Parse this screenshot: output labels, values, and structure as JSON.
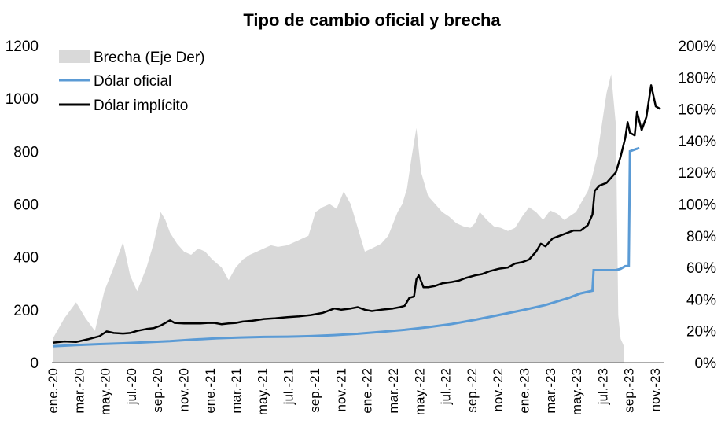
{
  "chart_data": {
    "type": "line",
    "title": "Tipo de cambio oficial y brecha",
    "x_tick_labels": [
      "ene.-20",
      "mar.-20",
      "may.-20",
      "jul.-20",
      "sep.-20",
      "nov.-20",
      "ene.-21",
      "mar.-21",
      "may.-21",
      "jul.-21",
      "sep.-21",
      "nov.-21",
      "ene.-22",
      "mar.-22",
      "may.-22",
      "jul.-22",
      "sep.-22",
      "nov.-22",
      "ene.-23",
      "mar.-23",
      "may.-23",
      "jul.-23",
      "sep.-23",
      "nov.-23"
    ],
    "y_left": {
      "min": 0,
      "max": 1200,
      "ticks": [
        "0",
        "200",
        "400",
        "600",
        "800",
        "1000",
        "1200"
      ]
    },
    "y_right": {
      "min": 0,
      "max": 200,
      "ticks": [
        "0%",
        "20%",
        "40%",
        "60%",
        "80%",
        "100%",
        "120%",
        "140%",
        "160%",
        "180%",
        "200%"
      ]
    },
    "legend": {
      "position": "top-left",
      "entries": [
        "Brecha (Eje Der)",
        "Dólar oficial",
        "Dólar implícito"
      ]
    },
    "colors": {
      "brecha": "#d9d9d9",
      "oficial": "#5b9bd5",
      "implicito": "#000000"
    },
    "series": [
      {
        "name": "Brecha (Eje Der)",
        "axis": "right",
        "kind": "area",
        "points": [
          [
            0,
            15
          ],
          [
            0.5,
            28
          ],
          [
            1,
            38
          ],
          [
            1.4,
            28
          ],
          [
            1.8,
            20
          ],
          [
            2.2,
            45
          ],
          [
            2.6,
            60
          ],
          [
            3,
            76
          ],
          [
            3.3,
            55
          ],
          [
            3.6,
            45
          ],
          [
            4,
            60
          ],
          [
            4.3,
            75
          ],
          [
            4.6,
            95
          ],
          [
            4.8,
            90
          ],
          [
            5,
            82
          ],
          [
            5.3,
            75
          ],
          [
            5.6,
            70
          ],
          [
            5.9,
            68
          ],
          [
            6.2,
            72
          ],
          [
            6.5,
            70
          ],
          [
            6.8,
            65
          ],
          [
            7.2,
            60
          ],
          [
            7.5,
            52
          ],
          [
            7.8,
            60
          ],
          [
            8.1,
            65
          ],
          [
            8.4,
            68
          ],
          [
            8.7,
            70
          ],
          [
            9,
            72
          ],
          [
            9.3,
            74
          ],
          [
            9.6,
            73
          ],
          [
            10,
            74
          ],
          [
            10.3,
            76
          ],
          [
            10.6,
            78
          ],
          [
            10.9,
            80
          ],
          [
            11.2,
            95
          ],
          [
            11.5,
            98
          ],
          [
            11.8,
            100
          ],
          [
            12.1,
            97
          ],
          [
            12.4,
            108
          ],
          [
            12.7,
            100
          ],
          [
            13,
            85
          ],
          [
            13.3,
            70
          ],
          [
            13.6,
            72
          ],
          [
            14,
            75
          ],
          [
            14.3,
            80
          ],
          [
            14.7,
            95
          ],
          [
            14.9,
            100
          ],
          [
            15.1,
            110
          ],
          [
            15.3,
            130
          ],
          [
            15.5,
            148
          ],
          [
            15.7,
            120
          ],
          [
            16,
            105
          ],
          [
            16.3,
            100
          ],
          [
            16.6,
            95
          ],
          [
            16.9,
            92
          ],
          [
            17.2,
            88
          ],
          [
            17.5,
            86
          ],
          [
            17.8,
            85
          ],
          [
            18,
            88
          ],
          [
            18.2,
            95
          ],
          [
            18.5,
            90
          ],
          [
            18.8,
            86
          ],
          [
            19.1,
            85
          ],
          [
            19.4,
            83
          ],
          [
            19.7,
            85
          ],
          [
            20,
            92
          ],
          [
            20.3,
            98
          ],
          [
            20.6,
            95
          ],
          [
            20.9,
            90
          ],
          [
            21.2,
            96
          ],
          [
            21.5,
            94
          ],
          [
            21.8,
            90
          ],
          [
            22,
            92
          ],
          [
            22.3,
            95
          ],
          [
            22.6,
            103
          ],
          [
            22.8,
            108
          ],
          [
            23,
            118
          ],
          [
            23.2,
            130
          ],
          [
            23.4,
            150
          ],
          [
            23.6,
            170
          ],
          [
            23.8,
            182
          ],
          [
            24,
            150
          ],
          [
            24.1,
            30
          ],
          [
            24.2,
            15
          ],
          [
            24.35,
            10
          ]
        ]
      },
      {
        "name": "Dólar oficial",
        "axis": "left",
        "kind": "line",
        "points": [
          [
            0,
            62
          ],
          [
            1,
            66
          ],
          [
            2,
            70
          ],
          [
            3,
            73
          ],
          [
            4,
            77
          ],
          [
            5,
            81
          ],
          [
            6,
            87
          ],
          [
            7,
            92
          ],
          [
            8,
            95
          ],
          [
            9,
            97
          ],
          [
            10,
            98
          ],
          [
            11,
            100
          ],
          [
            12,
            104
          ],
          [
            13,
            109
          ],
          [
            14,
            116
          ],
          [
            15,
            124
          ],
          [
            16,
            134
          ],
          [
            17,
            146
          ],
          [
            18,
            162
          ],
          [
            19,
            180
          ],
          [
            20,
            198
          ],
          [
            21,
            218
          ],
          [
            22,
            245
          ],
          [
            22.5,
            262
          ],
          [
            23,
            272
          ],
          [
            23.05,
            350
          ],
          [
            23.5,
            350
          ],
          [
            24,
            350
          ],
          [
            24.2,
            355
          ],
          [
            24.4,
            365
          ],
          [
            24.55,
            365
          ],
          [
            24.6,
            800
          ],
          [
            24.85,
            808
          ],
          [
            25,
            812
          ]
        ]
      },
      {
        "name": "Dólar implícito",
        "axis": "left",
        "kind": "line",
        "points": [
          [
            0,
            75
          ],
          [
            0.5,
            80
          ],
          [
            1,
            78
          ],
          [
            1.5,
            88
          ],
          [
            2,
            100
          ],
          [
            2.3,
            118
          ],
          [
            2.6,
            112
          ],
          [
            3,
            110
          ],
          [
            3.3,
            112
          ],
          [
            3.6,
            120
          ],
          [
            4,
            127
          ],
          [
            4.3,
            130
          ],
          [
            4.6,
            140
          ],
          [
            4.8,
            150
          ],
          [
            5,
            160
          ],
          [
            5.2,
            150
          ],
          [
            5.6,
            148
          ],
          [
            6,
            148
          ],
          [
            6.3,
            148
          ],
          [
            6.6,
            150
          ],
          [
            6.9,
            150
          ],
          [
            7.2,
            145
          ],
          [
            7.5,
            148
          ],
          [
            7.8,
            150
          ],
          [
            8.1,
            155
          ],
          [
            8.5,
            158
          ],
          [
            9,
            165
          ],
          [
            9.5,
            168
          ],
          [
            10,
            172
          ],
          [
            10.5,
            175
          ],
          [
            11,
            180
          ],
          [
            11.5,
            188
          ],
          [
            12,
            205
          ],
          [
            12.3,
            200
          ],
          [
            12.7,
            205
          ],
          [
            13,
            210
          ],
          [
            13.3,
            200
          ],
          [
            13.6,
            195
          ],
          [
            14,
            200
          ],
          [
            14.5,
            205
          ],
          [
            14.8,
            210
          ],
          [
            15,
            215
          ],
          [
            15.2,
            245
          ],
          [
            15.4,
            250
          ],
          [
            15.5,
            315
          ],
          [
            15.6,
            330
          ],
          [
            15.8,
            285
          ],
          [
            16,
            285
          ],
          [
            16.3,
            290
          ],
          [
            16.6,
            300
          ],
          [
            17,
            305
          ],
          [
            17.3,
            310
          ],
          [
            17.6,
            320
          ],
          [
            18,
            330
          ],
          [
            18.3,
            335
          ],
          [
            18.6,
            345
          ],
          [
            19,
            355
          ],
          [
            19.4,
            360
          ],
          [
            19.7,
            375
          ],
          [
            20,
            380
          ],
          [
            20.3,
            390
          ],
          [
            20.6,
            420
          ],
          [
            20.8,
            450
          ],
          [
            21,
            440
          ],
          [
            21.3,
            470
          ],
          [
            21.6,
            480
          ],
          [
            21.9,
            490
          ],
          [
            22.2,
            500
          ],
          [
            22.5,
            500
          ],
          [
            22.8,
            520
          ],
          [
            23,
            560
          ],
          [
            23.1,
            650
          ],
          [
            23.3,
            670
          ],
          [
            23.6,
            680
          ],
          [
            23.8,
            700
          ],
          [
            24,
            720
          ],
          [
            24.2,
            780
          ],
          [
            24.4,
            850
          ],
          [
            24.5,
            910
          ],
          [
            24.6,
            870
          ],
          [
            24.8,
            860
          ],
          [
            24.9,
            950
          ],
          [
            25.1,
            880
          ],
          [
            25.3,
            930
          ],
          [
            25.5,
            1050
          ],
          [
            25.7,
            970
          ],
          [
            25.9,
            960
          ]
        ]
      }
    ]
  }
}
